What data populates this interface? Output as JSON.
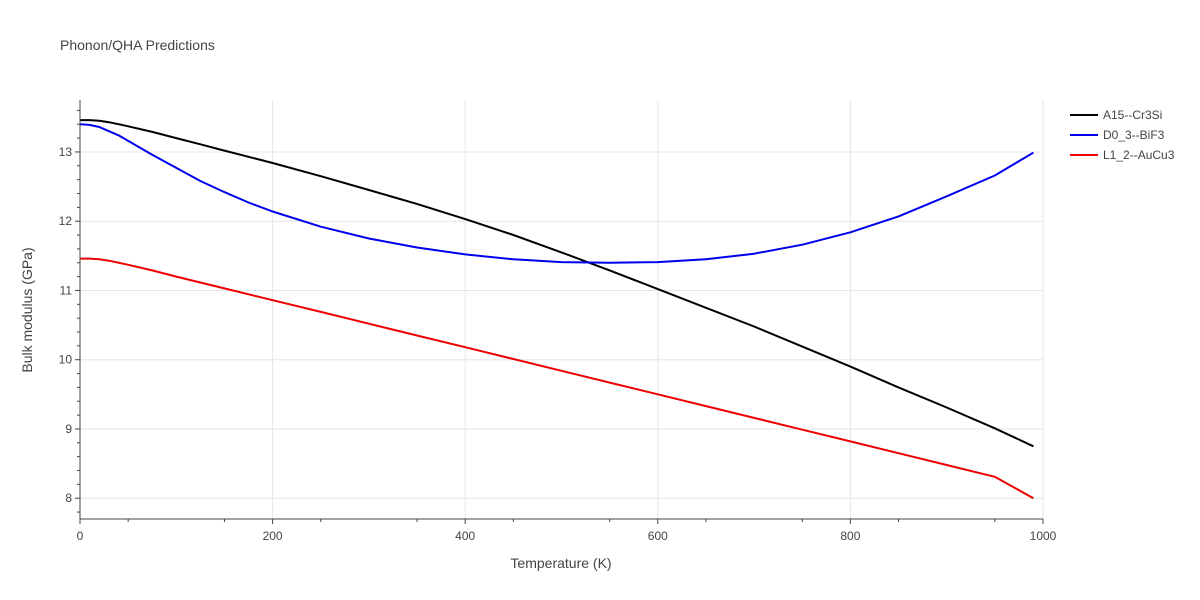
{
  "chart_data": {
    "type": "line",
    "title": "Phonon/QHA Predictions",
    "xlabel": "Temperature (K)",
    "ylabel": "Bulk modulus (GPa)",
    "xlim": [
      0,
      1000
    ],
    "ylim": [
      7.7,
      13.75
    ],
    "xticks": [
      0,
      200,
      400,
      600,
      800,
      1000
    ],
    "yticks": [
      8,
      9,
      10,
      11,
      12,
      13
    ],
    "grid": true,
    "legend_position": "top-right",
    "series": [
      {
        "name": "A15--Cr3Si",
        "color": "#000000",
        "x": [
          0,
          10,
          20,
          30,
          40,
          50,
          75,
          100,
          125,
          150,
          175,
          200,
          250,
          300,
          325,
          350,
          400,
          450,
          500,
          550,
          600,
          650,
          700,
          750,
          800,
          850,
          900,
          950,
          990
        ],
        "y": [
          13.46,
          13.46,
          13.45,
          13.43,
          13.4,
          13.37,
          13.29,
          13.2,
          13.11,
          13.02,
          12.93,
          12.84,
          12.65,
          12.45,
          12.35,
          12.25,
          12.03,
          11.8,
          11.55,
          11.29,
          11.02,
          10.75,
          10.48,
          10.19,
          9.9,
          9.6,
          9.31,
          9.01,
          8.75
        ]
      },
      {
        "name": "D0_3--BiF3",
        "color": "#0000ee",
        "x": [
          0,
          10,
          20,
          30,
          40,
          50,
          75,
          100,
          125,
          150,
          175,
          200,
          250,
          300,
          350,
          400,
          450,
          500,
          550,
          600,
          650,
          700,
          750,
          800,
          850,
          900,
          950,
          990
        ],
        "y": [
          13.4,
          13.39,
          13.36,
          13.3,
          13.24,
          13.16,
          12.96,
          12.77,
          12.58,
          12.42,
          12.27,
          12.14,
          11.92,
          11.75,
          11.62,
          11.52,
          11.45,
          11.41,
          11.4,
          11.41,
          11.45,
          11.53,
          11.66,
          11.84,
          12.07,
          12.36,
          12.66,
          12.99
        ]
      },
      {
        "name": "L1_2--AuCu3",
        "color": "#ee0000",
        "x": [
          0,
          10,
          20,
          30,
          50,
          75,
          100,
          150,
          200,
          250,
          300,
          350,
          400,
          450,
          500,
          550,
          600,
          650,
          700,
          750,
          800,
          850,
          900,
          950,
          990
        ],
        "y": [
          11.46,
          11.46,
          11.45,
          11.43,
          11.37,
          11.29,
          11.2,
          11.03,
          10.86,
          10.69,
          10.52,
          10.35,
          10.18,
          10.01,
          9.84,
          9.67,
          9.5,
          9.33,
          9.16,
          8.99,
          8.82,
          8.65,
          8.48,
          8.31,
          8.0
        ]
      }
    ]
  }
}
